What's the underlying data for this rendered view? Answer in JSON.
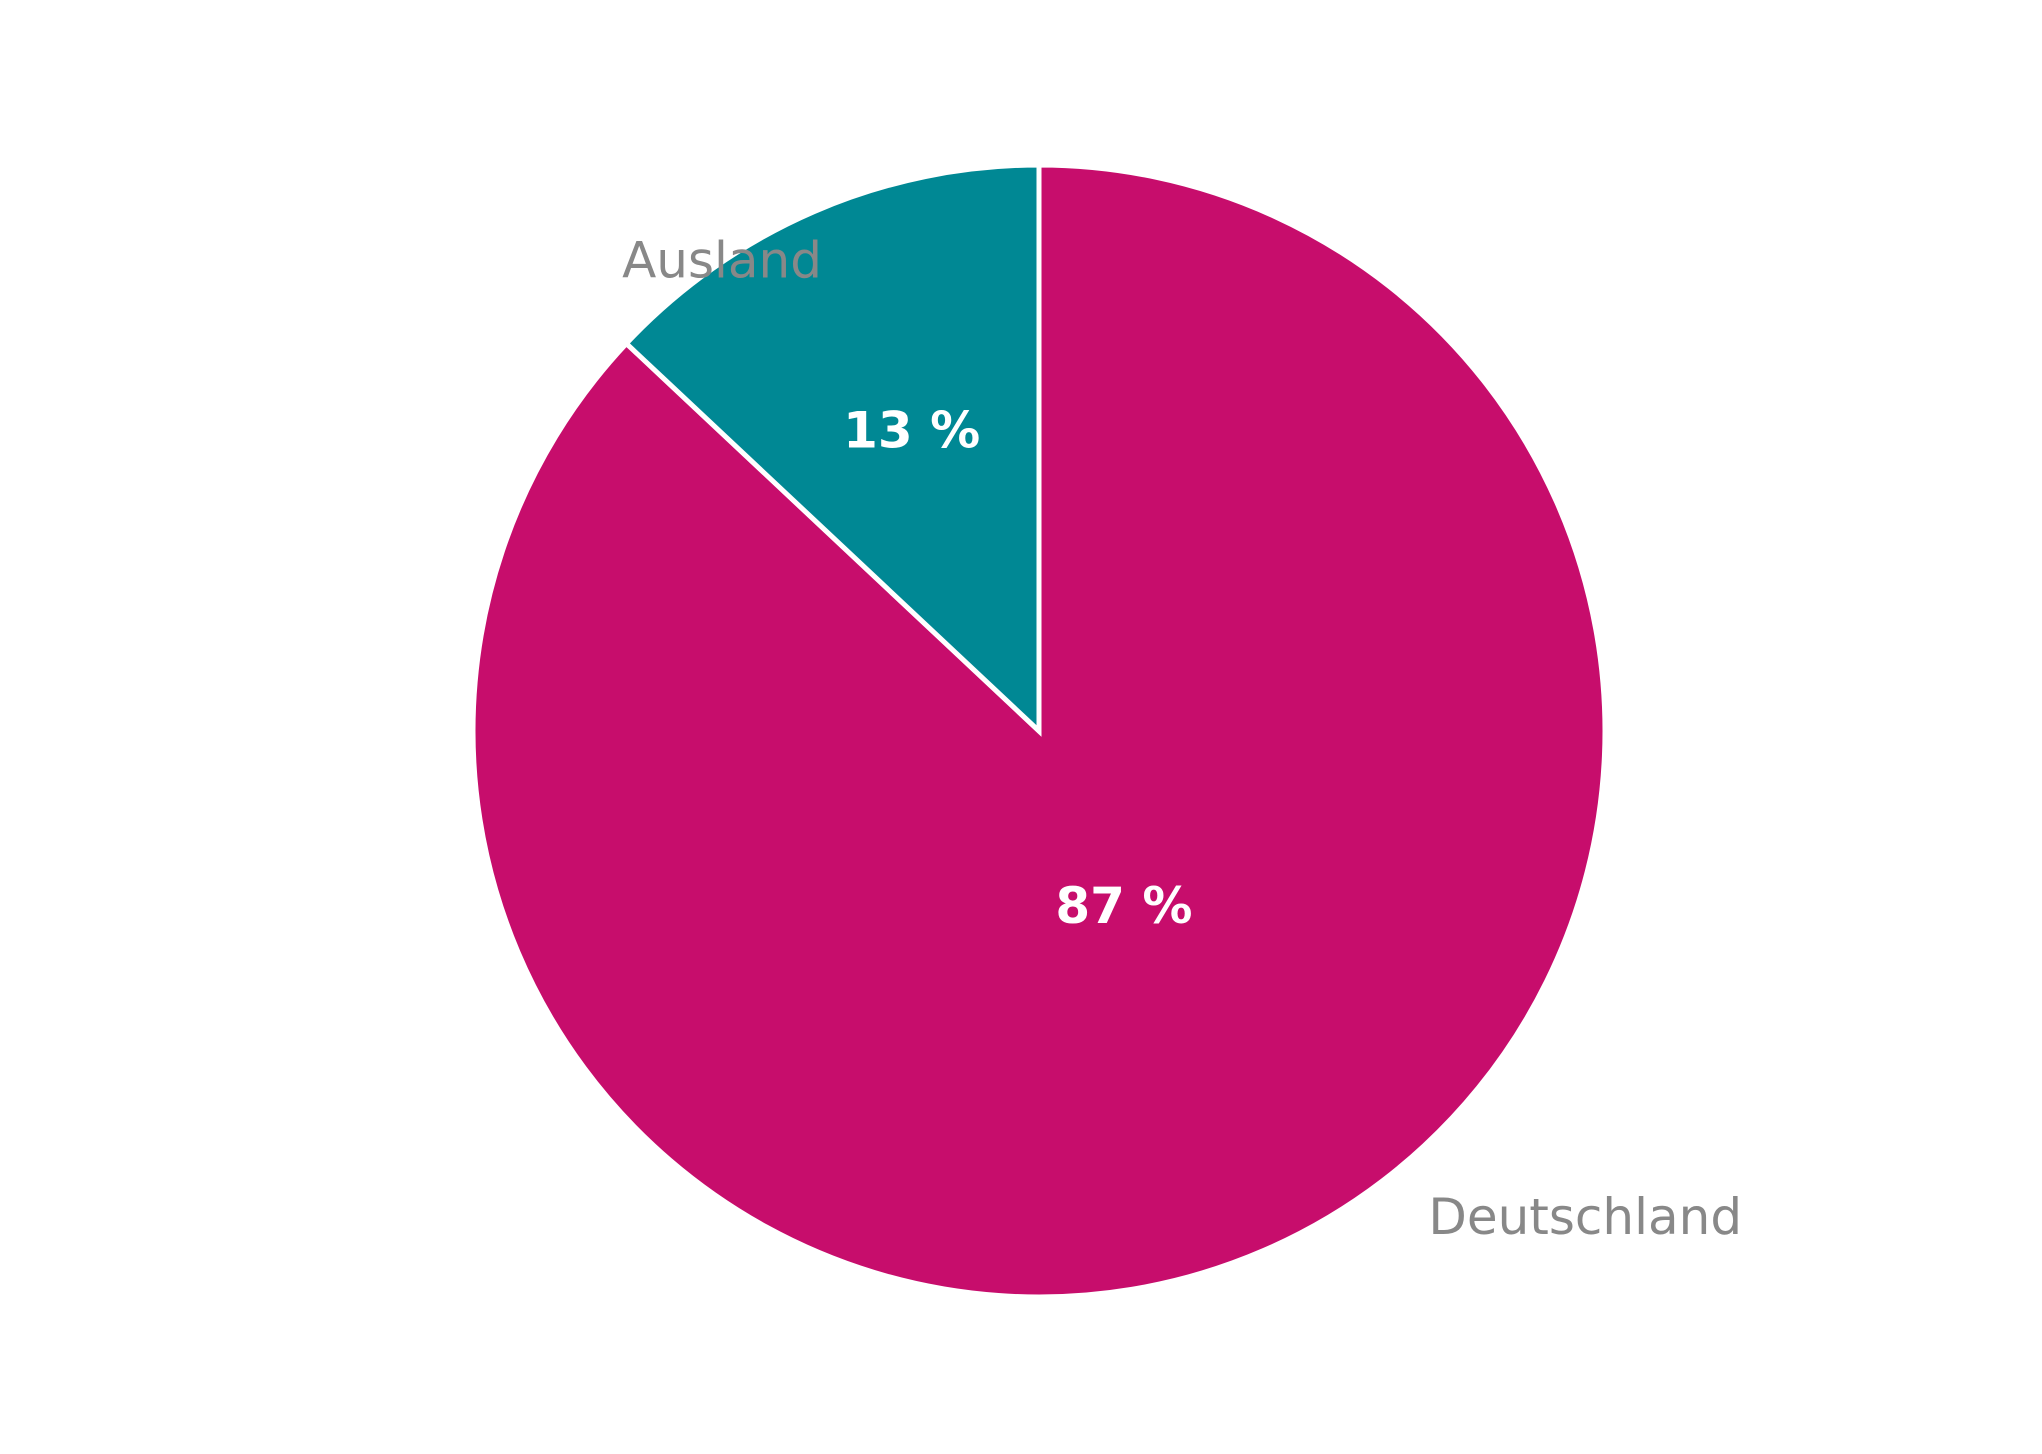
{
  "chart_data": {
    "type": "pie",
    "categories": [
      "Deutschland",
      "Ausland"
    ],
    "values": [
      87,
      13
    ],
    "value_labels": [
      "87 %",
      "13 %"
    ],
    "colors": [
      "#c70d6c",
      "#008894"
    ]
  }
}
